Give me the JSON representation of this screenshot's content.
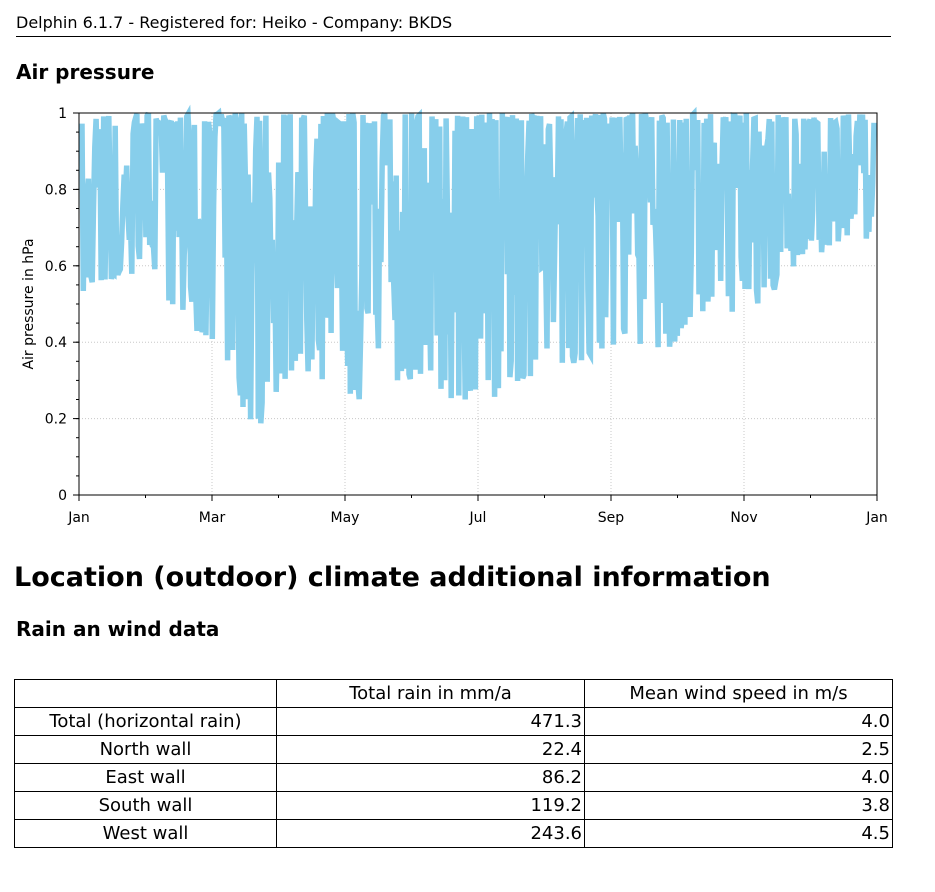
{
  "header": {
    "title": "Delphin 6.1.7 - Registered for: Heiko - Company: BKDS"
  },
  "section_air_pressure": {
    "title": "Air pressure"
  },
  "section_location": {
    "title": "Location (outdoor) climate additional information"
  },
  "section_rain": {
    "title": "Rain an wind data"
  },
  "chart_data": {
    "type": "area",
    "title": "",
    "xlabel": "",
    "ylabel": "Air pressure in hPa",
    "ylim": [
      0,
      1
    ],
    "yticks": [
      "0",
      "0.2",
      "0.4",
      "0.6",
      "0.8",
      "1"
    ],
    "xticks": [
      "Jan",
      "Mar",
      "May",
      "Jul",
      "Sep",
      "Nov",
      "Jan"
    ],
    "grid": true,
    "series": [
      {
        "color": "#87CEEB",
        "x": [
          "Jan 15",
          "Feb 1",
          "Feb 15",
          "Mar 1",
          "Mar 15",
          "Apr 1",
          "Apr 15",
          "May 1",
          "May 15",
          "Jun 1",
          "Jun 15",
          "Jul 1",
          "Jul 15",
          "Aug 1",
          "Aug 15",
          "Sep 1",
          "Sep 15",
          "Oct 1",
          "Oct 15",
          "Nov 1",
          "Nov 15",
          "Dec 1",
          "Dec 15",
          "Dec 31"
        ],
        "min": [
          0.52,
          0.56,
          0.55,
          0.44,
          0.38,
          0.15,
          0.32,
          0.26,
          0.24,
          0.28,
          0.31,
          0.23,
          0.25,
          0.31,
          0.34,
          0.36,
          0.4,
          0.37,
          0.46,
          0.47,
          0.51,
          0.62,
          0.65,
          0.67
        ],
        "max": [
          1.0,
          1.0,
          1.0,
          1.0,
          1.0,
          1.0,
          1.0,
          1.0,
          1.0,
          1.0,
          1.0,
          1.0,
          1.0,
          1.0,
          1.0,
          1.0,
          1.0,
          1.0,
          1.0,
          1.0,
          1.0,
          1.0,
          1.0,
          1.0
        ]
      }
    ]
  },
  "rain_table": {
    "headers": [
      "",
      "Total rain in mm/a",
      "Mean wind speed in m/s"
    ],
    "rows": [
      [
        "Total (horizontal rain)",
        "471.3",
        "4.0"
      ],
      [
        "North wall",
        "22.4",
        "2.5"
      ],
      [
        "East wall",
        "86.2",
        "4.0"
      ],
      [
        "South wall",
        "119.2",
        "3.8"
      ],
      [
        "West wall",
        "243.6",
        "4.5"
      ]
    ]
  }
}
